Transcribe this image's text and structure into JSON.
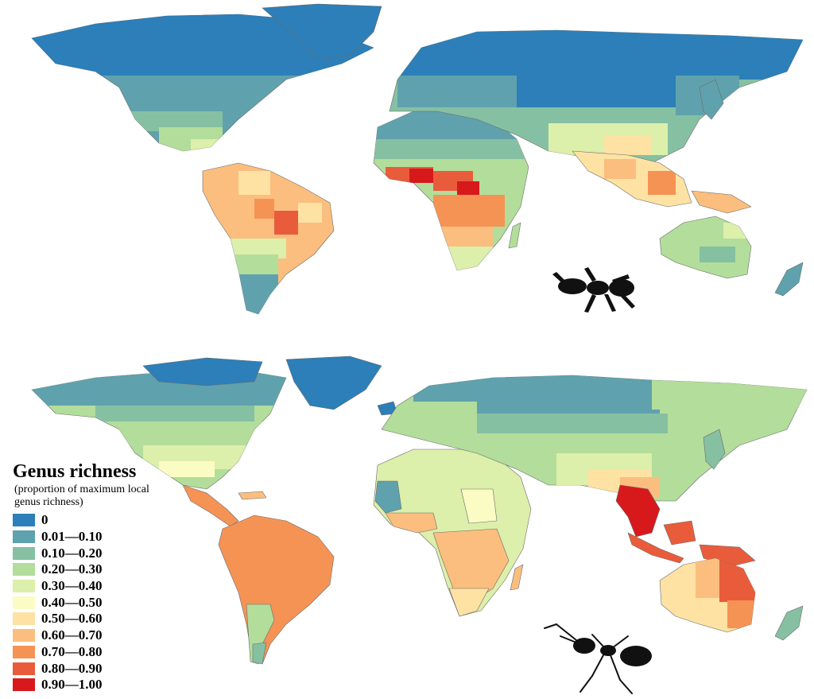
{
  "legend": {
    "title": "Genus richness",
    "subtitle": "(proportion of maximum local genus richness)",
    "items": [
      {
        "label": "0",
        "color": "#2c7fb8"
      },
      {
        "label": "0.01—0.10",
        "color": "#5fa2ad"
      },
      {
        "label": "0.10—0.20",
        "color": "#86c0a3"
      },
      {
        "label": "0.20—0.30",
        "color": "#b3dd9b"
      },
      {
        "label": "0.30—0.40",
        "color": "#dcefab"
      },
      {
        "label": "0.40—0.50",
        "color": "#fbfcc4"
      },
      {
        "label": "0.50—0.60",
        "color": "#fde2a4"
      },
      {
        "label": "0.60—0.70",
        "color": "#fbbe7e"
      },
      {
        "label": "0.70—0.80",
        "color": "#f59355"
      },
      {
        "label": "0.80—0.90",
        "color": "#e95c3b"
      },
      {
        "label": "0.90—1.00",
        "color": "#d7191c"
      }
    ]
  },
  "maps": [
    {
      "id": "grid-map",
      "unit": "grid-cells",
      "regions": [
        {
          "name": "North America (northern)",
          "color": "#2c7fb8"
        },
        {
          "name": "North America (temperate)",
          "color": "#5fa2ad"
        },
        {
          "name": "Greenland",
          "color": "#2c7fb8"
        },
        {
          "name": "South America (central)",
          "color": "#e95c3b"
        },
        {
          "name": "Central Africa",
          "color": "#d7191c"
        },
        {
          "name": "Southeast Asia",
          "color": "#f59355"
        },
        {
          "name": "Australia",
          "color": "#b3dd9b"
        },
        {
          "name": "Russia / Siberia",
          "color": "#2c7fb8"
        }
      ],
      "silhouette": "ant-icon"
    },
    {
      "id": "political-map",
      "unit": "political-regions",
      "regions": [
        {
          "name": "Canada",
          "color": "#5fa2ad"
        },
        {
          "name": "Greenland",
          "color": "#2c7fb8"
        },
        {
          "name": "United States",
          "color": "#b3dd9b"
        },
        {
          "name": "Central America",
          "color": "#f59355"
        },
        {
          "name": "Brazil",
          "color": "#f59355"
        },
        {
          "name": "Sub-Saharan Africa",
          "color": "#fbbe7e"
        },
        {
          "name": "Indochina",
          "color": "#d7191c"
        },
        {
          "name": "Indonesia / New Guinea",
          "color": "#e95c3b"
        },
        {
          "name": "Queensland",
          "color": "#e95c3b"
        },
        {
          "name": "Russia",
          "color": "#86c0a3"
        }
      ],
      "silhouette": "ant-icon"
    }
  ]
}
